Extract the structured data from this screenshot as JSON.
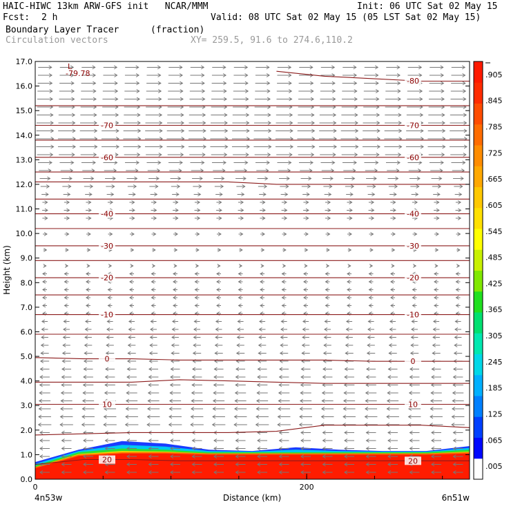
{
  "header": {
    "title": "HAIC-HIWC 13km ARW-GFS init   NCAR/MMM",
    "init": "Init: 06 UTC Sat 02 May 15",
    "fcst_label": "Fcst:",
    "fcst_value": "2 h",
    "valid": "Valid: 08 UTC Sat 02 May 15 (05 LST Sat 02 May 15)",
    "field_name": "Boundary Layer Tracer",
    "field_units": "(fraction)",
    "vector_label": "Circulation vectors",
    "xy_label": "XY= 259.5, 91.6 to 274.6,110.2"
  },
  "chart_data": {
    "type": "heatmap",
    "xlabel": "Distance (km)",
    "ylabel": "Height (km)",
    "xlim": [
      0,
      320
    ],
    "ylim": [
      0,
      17
    ],
    "x_ticks": [
      {
        "value": 0,
        "label": "0"
      },
      {
        "value": 200,
        "label": "200"
      }
    ],
    "x_end_labels": {
      "left": "4n53w",
      "right": "6n51w"
    },
    "y_ticks": [
      "0.0",
      "1.0",
      "2.0",
      "3.0",
      "4.0",
      "5.0",
      "6.0",
      "7.0",
      "8.0",
      "9.0",
      "10.0",
      "11.0",
      "12.0",
      "13.0",
      "14.0",
      "15.0",
      "16.0",
      "17.0"
    ],
    "low_marker": {
      "label": "L",
      "value": "-79.78",
      "x": 25,
      "y": 16.6
    },
    "temperature_contours": [
      {
        "label": "-80",
        "heights": [
          16.6,
          16.6,
          16.6,
          16.6,
          16.6,
          16.6,
          16.4,
          16.3,
          16.2,
          16.2
        ]
      },
      {
        "label": "",
        "heights": [
          15.2,
          15.2,
          15.2,
          15.2,
          15.2,
          15.2,
          15.2,
          15.2,
          15.2,
          15.2
        ]
      },
      {
        "label": "-70",
        "heights": [
          14.4,
          14.4,
          14.4,
          14.4,
          14.4,
          14.4,
          14.4,
          14.4,
          14.4,
          14.4
        ]
      },
      {
        "label": "",
        "heights": [
          13.8,
          13.8,
          13.8,
          13.8,
          13.8,
          13.8,
          13.8,
          13.8,
          13.8,
          13.8
        ]
      },
      {
        "label": "-60",
        "heights": [
          13.1,
          13.1,
          13.1,
          13.1,
          13.1,
          13.1,
          13.1,
          13.1,
          13.1,
          13.1
        ]
      },
      {
        "label": "",
        "heights": [
          12.5,
          12.5,
          12.5,
          12.5,
          12.5,
          12.5,
          12.5,
          12.5,
          12.5,
          12.5
        ]
      },
      {
        "label": "",
        "heights": [
          12.1,
          12.1,
          12.1,
          12.1,
          12.1,
          12.0,
          12.0,
          12.0,
          12.0,
          12.0
        ]
      },
      {
        "label": "",
        "heights": [
          11.4,
          11.4,
          11.4,
          11.4,
          11.4,
          11.4,
          11.4,
          11.4,
          11.4,
          11.4
        ]
      },
      {
        "label": "-40",
        "heights": [
          10.8,
          10.8,
          10.8,
          10.8,
          10.8,
          10.8,
          10.8,
          10.8,
          10.8,
          10.8
        ]
      },
      {
        "label": "",
        "heights": [
          10.2,
          10.2,
          10.2,
          10.2,
          10.2,
          10.2,
          10.2,
          10.2,
          10.2,
          10.2
        ]
      },
      {
        "label": "-30",
        "heights": [
          9.5,
          9.5,
          9.5,
          9.5,
          9.5,
          9.5,
          9.5,
          9.5,
          9.5,
          9.5
        ]
      },
      {
        "label": "",
        "heights": [
          8.9,
          8.9,
          8.9,
          8.9,
          8.9,
          8.9,
          8.9,
          8.9,
          8.9,
          8.9
        ]
      },
      {
        "label": "-20",
        "heights": [
          8.2,
          8.2,
          8.2,
          8.2,
          8.2,
          8.2,
          8.2,
          8.2,
          8.2,
          8.2
        ]
      },
      {
        "label": "",
        "heights": [
          7.5,
          7.5,
          7.5,
          7.5,
          7.5,
          7.5,
          7.5,
          7.5,
          7.5,
          7.5
        ]
      },
      {
        "label": "-10",
        "heights": [
          6.7,
          6.7,
          6.7,
          6.7,
          6.7,
          6.7,
          6.7,
          6.7,
          6.7,
          6.7
        ]
      },
      {
        "label": "",
        "heights": [
          5.9,
          5.9,
          5.9,
          5.9,
          5.9,
          5.9,
          5.9,
          5.9,
          5.9,
          5.9
        ]
      },
      {
        "label": "0",
        "heights": [
          4.95,
          4.9,
          4.9,
          4.85,
          4.85,
          4.85,
          4.85,
          4.8,
          4.8,
          4.8
        ]
      },
      {
        "label": "",
        "heights": [
          3.95,
          3.95,
          3.95,
          4.05,
          4.0,
          3.95,
          3.9,
          3.9,
          3.9,
          3.9
        ]
      },
      {
        "label": "10",
        "heights": [
          3.05,
          3.05,
          3.05,
          3.05,
          3.05,
          3.05,
          3.05,
          3.05,
          3.05,
          3.05
        ]
      },
      {
        "label": "",
        "heights": [
          1.8,
          1.85,
          1.9,
          1.9,
          1.9,
          1.95,
          2.2,
          2.2,
          2.2,
          2.1
        ]
      },
      {
        "label": "20",
        "heights": [
          0.6,
          0.8,
          0.8,
          0.75,
          0.75,
          0.75,
          0.75,
          0.75,
          0.75,
          0.75
        ]
      }
    ],
    "tracer_layer": {
      "red_top": [
        0.45,
        0.95,
        1.05,
        1.05,
        1.0,
        1.0,
        1.0,
        1.0,
        1.0,
        1.0,
        1.05
      ],
      "green_top": [
        0.55,
        1.1,
        1.25,
        1.2,
        1.1,
        1.1,
        1.1,
        1.1,
        1.1,
        1.1,
        1.2
      ],
      "blue_top": [
        0.7,
        1.2,
        1.55,
        1.45,
        1.2,
        1.15,
        1.3,
        1.2,
        1.15,
        1.15,
        1.35
      ]
    },
    "colorbar": {
      "colors": [
        "#ffffff",
        "#0008ff",
        "#0040ff",
        "#0080ff",
        "#00b0ff",
        "#00d8e8",
        "#00e8b0",
        "#00e070",
        "#20e020",
        "#80e800",
        "#c8f000",
        "#ffff00",
        "#ffe000",
        "#ffc800",
        "#ffa800",
        "#ff8c00",
        "#ff6c00",
        "#ff4c00",
        "#ff2c00",
        "#ff1a00"
      ],
      "labels": [
        ".005",
        ".065",
        ".125",
        ".185",
        ".245",
        ".305",
        ".365",
        ".425",
        ".485",
        ".545",
        ".605",
        ".665",
        ".725",
        ".785",
        ".845",
        ".905"
      ]
    }
  }
}
